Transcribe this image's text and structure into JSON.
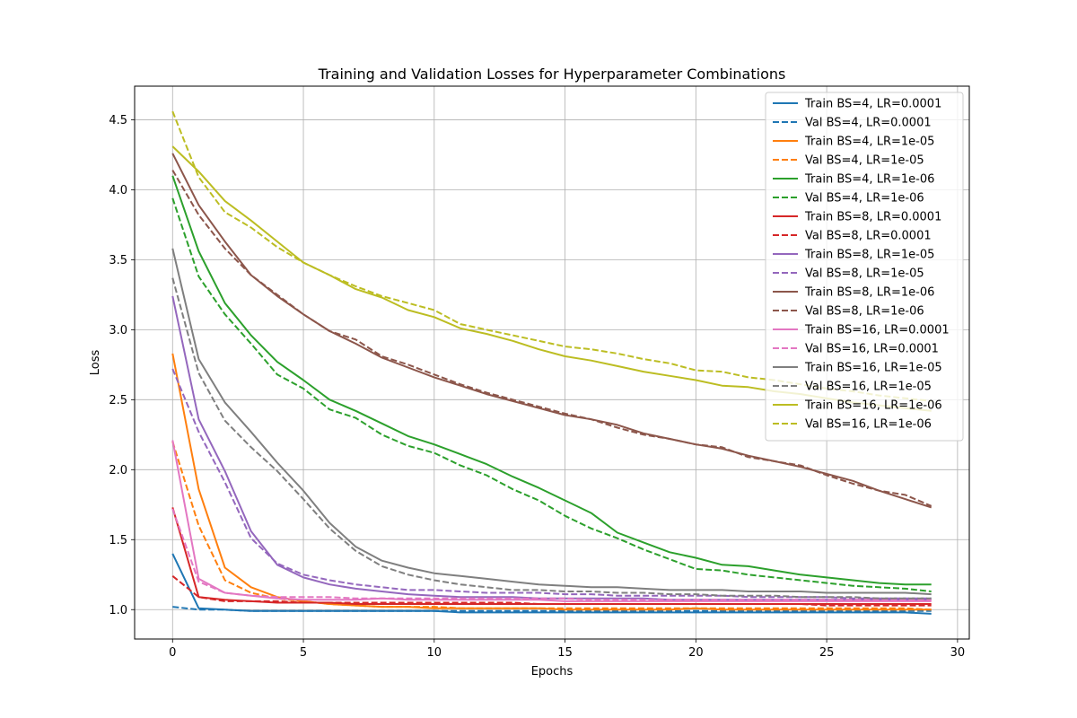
{
  "chart_data": {
    "type": "line",
    "title": "Training and Validation Losses for Hyperparameter Combinations",
    "xlabel": "Epochs",
    "ylabel": "Loss",
    "xlim": [
      -1.45,
      30.45
    ],
    "ylim": [
      0.79,
      4.74
    ],
    "xticks": [
      0,
      5,
      10,
      15,
      20,
      25,
      30
    ],
    "yticks": [
      1.0,
      1.5,
      2.0,
      2.5,
      3.0,
      3.5,
      4.0,
      4.5
    ],
    "grid": true,
    "legend_position": "top-right",
    "x": [
      0,
      1,
      2,
      3,
      4,
      5,
      6,
      7,
      8,
      9,
      10,
      11,
      12,
      13,
      14,
      15,
      16,
      17,
      18,
      19,
      20,
      21,
      22,
      23,
      24,
      25,
      26,
      27,
      28,
      29
    ],
    "series": [
      {
        "name": "Train BS=4, LR=0.0001",
        "color": "#1f77b4",
        "dash": "solid",
        "values": [
          1.4,
          1.01,
          1.0,
          0.99,
          0.99,
          0.99,
          0.99,
          0.99,
          0.99,
          0.99,
          0.99,
          0.98,
          0.98,
          0.98,
          0.98,
          0.98,
          0.98,
          0.98,
          0.98,
          0.98,
          0.98,
          0.98,
          0.98,
          0.98,
          0.98,
          0.98,
          0.98,
          0.98,
          0.98,
          0.97
        ]
      },
      {
        "name": "Val BS=4, LR=0.0001",
        "color": "#1f77b4",
        "dash": "dashed",
        "values": [
          1.02,
          1.0,
          1.0,
          0.99,
          0.99,
          0.99,
          0.99,
          0.99,
          0.99,
          0.99,
          0.99,
          0.99,
          0.99,
          0.99,
          0.99,
          0.99,
          0.99,
          0.99,
          0.99,
          0.99,
          0.99,
          0.99,
          0.99,
          0.99,
          0.99,
          0.99,
          0.99,
          0.99,
          0.99,
          0.99
        ]
      },
      {
        "name": "Train BS=4, LR=1e-05",
        "color": "#ff7f0e",
        "dash": "solid",
        "values": [
          2.83,
          1.86,
          1.3,
          1.16,
          1.09,
          1.06,
          1.04,
          1.03,
          1.02,
          1.02,
          1.01,
          1.01,
          1.01,
          1.01,
          1.01,
          1.0,
          1.0,
          1.0,
          1.0,
          1.0,
          1.01,
          1.0,
          1.0,
          1.0,
          1.0,
          1.0,
          1.0,
          1.0,
          1.0,
          1.0
        ]
      },
      {
        "name": "Val BS=4, LR=1e-05",
        "color": "#ff7f0e",
        "dash": "dashed",
        "values": [
          2.2,
          1.6,
          1.21,
          1.12,
          1.08,
          1.06,
          1.04,
          1.03,
          1.02,
          1.02,
          1.02,
          1.01,
          1.01,
          1.01,
          1.01,
          1.01,
          1.01,
          1.01,
          1.01,
          1.01,
          1.01,
          1.01,
          1.01,
          1.01,
          1.01,
          1.01,
          1.01,
          1.01,
          1.01,
          1.0
        ]
      },
      {
        "name": "Train BS=4, LR=1e-06",
        "color": "#2ca02c",
        "dash": "solid",
        "values": [
          4.1,
          3.56,
          3.19,
          2.96,
          2.77,
          2.64,
          2.5,
          2.42,
          2.33,
          2.24,
          2.18,
          2.11,
          2.04,
          1.95,
          1.87,
          1.78,
          1.69,
          1.55,
          1.48,
          1.41,
          1.37,
          1.32,
          1.31,
          1.28,
          1.25,
          1.23,
          1.21,
          1.19,
          1.18,
          1.18
        ]
      },
      {
        "name": "Val BS=4, LR=1e-06",
        "color": "#2ca02c",
        "dash": "dashed",
        "values": [
          3.94,
          3.38,
          3.11,
          2.9,
          2.68,
          2.58,
          2.43,
          2.37,
          2.25,
          2.17,
          2.12,
          2.03,
          1.96,
          1.86,
          1.78,
          1.67,
          1.58,
          1.51,
          1.43,
          1.36,
          1.29,
          1.28,
          1.25,
          1.23,
          1.21,
          1.19,
          1.17,
          1.16,
          1.15,
          1.13
        ]
      },
      {
        "name": "Train BS=8, LR=0.0001",
        "color": "#d62728",
        "dash": "solid",
        "values": [
          1.73,
          1.09,
          1.07,
          1.06,
          1.05,
          1.05,
          1.05,
          1.04,
          1.04,
          1.04,
          1.04,
          1.04,
          1.04,
          1.04,
          1.04,
          1.04,
          1.04,
          1.04,
          1.04,
          1.04,
          1.04,
          1.04,
          1.04,
          1.04,
          1.04,
          1.04,
          1.04,
          1.04,
          1.04,
          1.04
        ]
      },
      {
        "name": "Val BS=8, LR=0.0001",
        "color": "#d62728",
        "dash": "dashed",
        "values": [
          1.24,
          1.09,
          1.06,
          1.06,
          1.06,
          1.05,
          1.05,
          1.05,
          1.05,
          1.05,
          1.05,
          1.05,
          1.05,
          1.05,
          1.04,
          1.04,
          1.04,
          1.04,
          1.04,
          1.04,
          1.04,
          1.04,
          1.04,
          1.04,
          1.04,
          1.03,
          1.03,
          1.03,
          1.03,
          1.03
        ]
      },
      {
        "name": "Train BS=8, LR=1e-05",
        "color": "#9467bd",
        "dash": "solid",
        "values": [
          3.24,
          2.36,
          1.99,
          1.56,
          1.32,
          1.23,
          1.18,
          1.15,
          1.13,
          1.11,
          1.1,
          1.09,
          1.09,
          1.09,
          1.08,
          1.08,
          1.08,
          1.08,
          1.08,
          1.07,
          1.07,
          1.07,
          1.07,
          1.07,
          1.07,
          1.07,
          1.07,
          1.07,
          1.07,
          1.07
        ]
      },
      {
        "name": "Val BS=8, LR=1e-05",
        "color": "#9467bd",
        "dash": "dashed",
        "values": [
          2.72,
          2.27,
          1.91,
          1.51,
          1.33,
          1.25,
          1.21,
          1.18,
          1.16,
          1.14,
          1.14,
          1.13,
          1.12,
          1.12,
          1.12,
          1.11,
          1.11,
          1.1,
          1.1,
          1.1,
          1.1,
          1.1,
          1.09,
          1.09,
          1.09,
          1.09,
          1.08,
          1.08,
          1.08,
          1.08
        ]
      },
      {
        "name": "Train BS=8, LR=1e-06",
        "color": "#8c564b",
        "dash": "solid",
        "values": [
          4.26,
          3.89,
          3.63,
          3.39,
          3.24,
          3.11,
          2.99,
          2.9,
          2.8,
          2.73,
          2.66,
          2.6,
          2.54,
          2.49,
          2.44,
          2.39,
          2.36,
          2.32,
          2.26,
          2.22,
          2.18,
          2.15,
          2.1,
          2.06,
          2.02,
          1.97,
          1.92,
          1.85,
          1.79,
          1.73
        ]
      },
      {
        "name": "Val BS=8, LR=1e-06",
        "color": "#8c564b",
        "dash": "dashed",
        "values": [
          4.14,
          3.82,
          3.58,
          3.39,
          3.25,
          3.11,
          2.99,
          2.93,
          2.81,
          2.75,
          2.68,
          2.61,
          2.55,
          2.5,
          2.45,
          2.4,
          2.36,
          2.3,
          2.25,
          2.22,
          2.18,
          2.16,
          2.09,
          2.06,
          2.03,
          1.96,
          1.9,
          1.85,
          1.82,
          1.74
        ]
      },
      {
        "name": "Train BS=16, LR=0.0001",
        "color": "#e377c2",
        "dash": "solid",
        "values": [
          2.21,
          1.22,
          1.12,
          1.1,
          1.08,
          1.07,
          1.07,
          1.07,
          1.08,
          1.07,
          1.07,
          1.07,
          1.07,
          1.07,
          1.07,
          1.06,
          1.06,
          1.06,
          1.06,
          1.06,
          1.06,
          1.06,
          1.06,
          1.06,
          1.06,
          1.06,
          1.06,
          1.06,
          1.06,
          1.06
        ]
      },
      {
        "name": "Val BS=16, LR=0.0001",
        "color": "#e377c2",
        "dash": "dashed",
        "values": [
          1.72,
          1.2,
          1.12,
          1.1,
          1.09,
          1.09,
          1.09,
          1.08,
          1.08,
          1.08,
          1.08,
          1.08,
          1.08,
          1.08,
          1.08,
          1.08,
          1.07,
          1.07,
          1.07,
          1.07,
          1.07,
          1.07,
          1.07,
          1.07,
          1.07,
          1.07,
          1.07,
          1.07,
          1.07,
          1.07
        ]
      },
      {
        "name": "Train BS=16, LR=1e-05",
        "color": "#7f7f7f",
        "dash": "solid",
        "values": [
          3.58,
          2.79,
          2.48,
          2.27,
          2.05,
          1.85,
          1.62,
          1.45,
          1.35,
          1.3,
          1.26,
          1.24,
          1.22,
          1.2,
          1.18,
          1.17,
          1.16,
          1.16,
          1.15,
          1.14,
          1.14,
          1.14,
          1.13,
          1.13,
          1.13,
          1.12,
          1.12,
          1.12,
          1.12,
          1.11
        ]
      },
      {
        "name": "Val BS=16, LR=1e-05",
        "color": "#7f7f7f",
        "dash": "dashed",
        "values": [
          3.37,
          2.69,
          2.35,
          2.16,
          1.99,
          1.79,
          1.58,
          1.42,
          1.31,
          1.25,
          1.21,
          1.18,
          1.16,
          1.14,
          1.14,
          1.13,
          1.13,
          1.12,
          1.12,
          1.11,
          1.11,
          1.1,
          1.1,
          1.1,
          1.09,
          1.09,
          1.09,
          1.08,
          1.08,
          1.08
        ]
      },
      {
        "name": "Train BS=16, LR=1e-06",
        "color": "#bcbd22",
        "dash": "solid",
        "values": [
          4.31,
          4.13,
          3.92,
          3.78,
          3.63,
          3.48,
          3.39,
          3.29,
          3.23,
          3.14,
          3.09,
          3.01,
          2.97,
          2.92,
          2.86,
          2.81,
          2.78,
          2.74,
          2.7,
          2.67,
          2.64,
          2.6,
          2.59,
          2.56,
          2.54,
          2.51,
          2.48,
          2.46,
          2.44,
          2.42
        ]
      },
      {
        "name": "Val BS=16, LR=1e-06",
        "color": "#bcbd22",
        "dash": "dashed",
        "values": [
          4.56,
          4.09,
          3.84,
          3.73,
          3.59,
          3.48,
          3.39,
          3.31,
          3.24,
          3.19,
          3.14,
          3.04,
          3.0,
          2.96,
          2.92,
          2.88,
          2.86,
          2.83,
          2.79,
          2.76,
          2.71,
          2.7,
          2.66,
          2.64,
          2.61,
          2.58,
          2.56,
          2.53,
          2.51,
          2.49
        ]
      }
    ]
  }
}
